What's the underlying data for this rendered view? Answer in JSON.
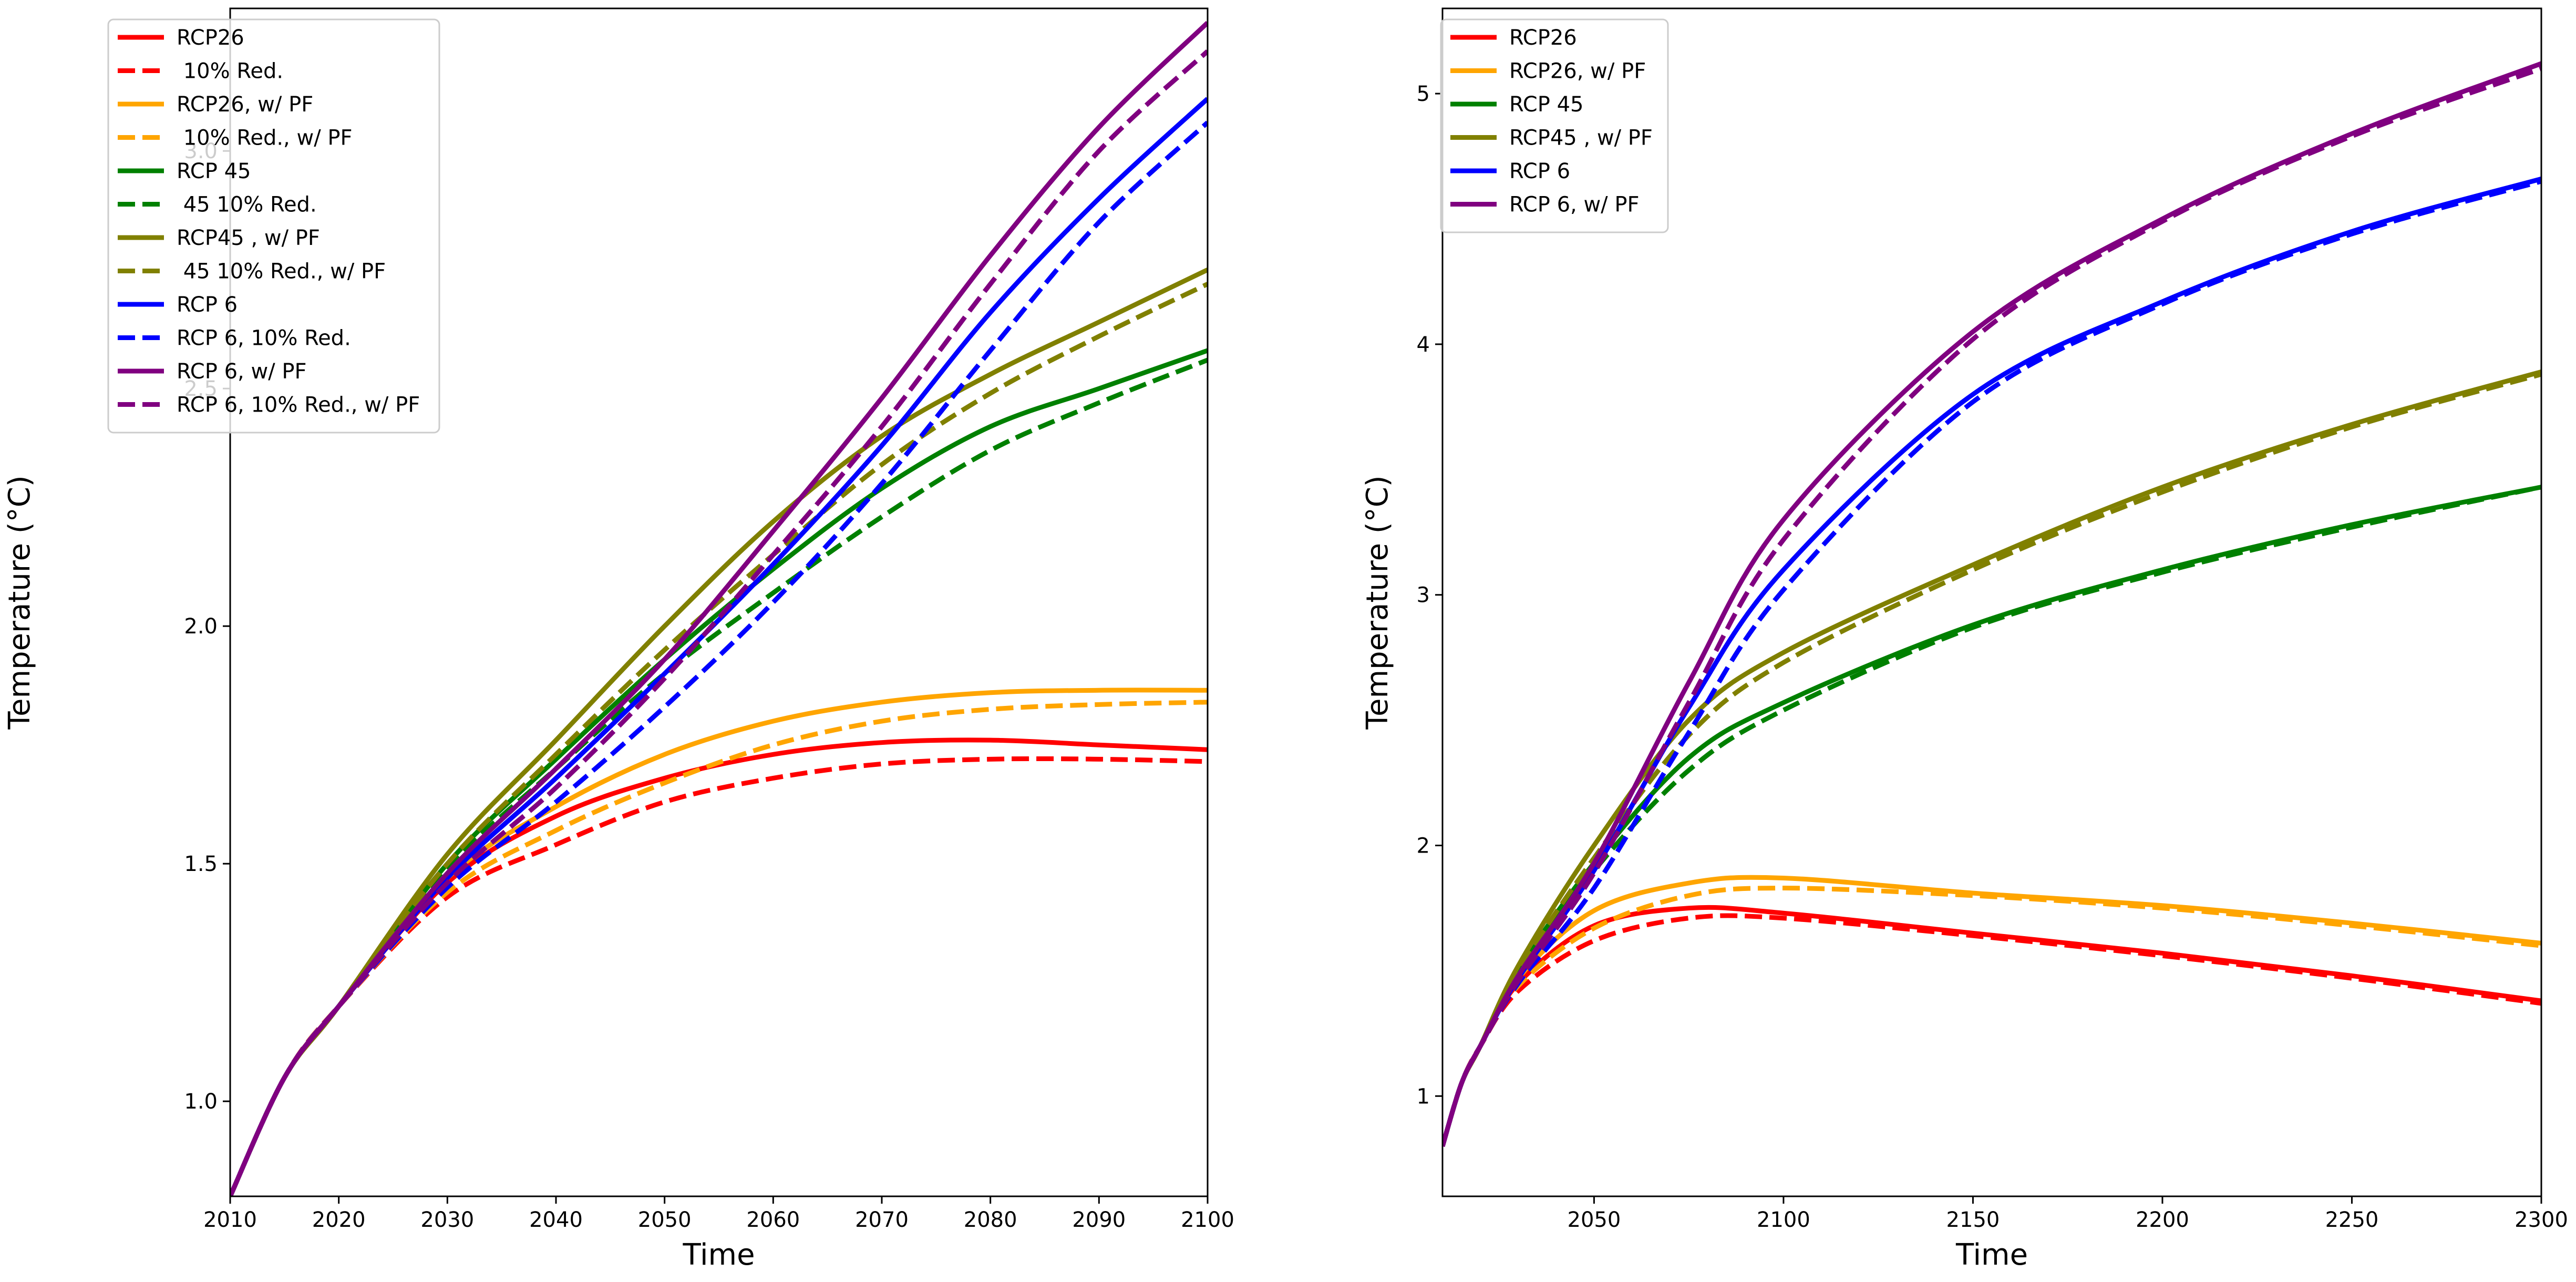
{
  "chart_data": [
    {
      "type": "line",
      "xlabel": "Time",
      "ylabel": "Temperature (°C)",
      "xlim": [
        2010,
        2100
      ],
      "ylim": [
        0.8,
        3.3
      ],
      "xticks": [
        2010,
        2020,
        2030,
        2040,
        2050,
        2060,
        2070,
        2080,
        2090,
        2100
      ],
      "yticks": [
        "1.0",
        "1.5",
        "2.0",
        "2.5",
        "3.0"
      ],
      "grid": false,
      "legend_position": "top-left",
      "x": [
        2010,
        2015,
        2020,
        2030,
        2040,
        2050,
        2060,
        2070,
        2080,
        2090,
        2100
      ],
      "series": [
        {
          "name": "RCP26",
          "color": "#ff0000",
          "style": "solid",
          "values": [
            0.8,
            1.05,
            1.2,
            1.46,
            1.6,
            1.68,
            1.73,
            1.755,
            1.76,
            1.75,
            1.74
          ]
        },
        {
          "name": " 10% Red.",
          "color": "#ff0000",
          "style": "dashed",
          "values": [
            0.8,
            1.05,
            1.2,
            1.43,
            1.54,
            1.63,
            1.68,
            1.71,
            1.72,
            1.72,
            1.715
          ]
        },
        {
          "name": "RCP26, w/ PF",
          "color": "#ffa500",
          "style": "solid",
          "values": [
            0.8,
            1.05,
            1.2,
            1.47,
            1.62,
            1.73,
            1.8,
            1.84,
            1.86,
            1.865,
            1.865
          ]
        },
        {
          "name": " 10% Red., w/ PF",
          "color": "#ffa500",
          "style": "dashed",
          "values": [
            0.8,
            1.05,
            1.2,
            1.44,
            1.57,
            1.67,
            1.75,
            1.8,
            1.825,
            1.835,
            1.84
          ]
        },
        {
          "name": "RCP 45",
          "color": "#008000",
          "style": "solid",
          "values": [
            0.8,
            1.05,
            1.2,
            1.5,
            1.72,
            1.93,
            2.12,
            2.29,
            2.42,
            2.5,
            2.58
          ]
        },
        {
          "name": " 45 10% Red.",
          "color": "#008000",
          "style": "dashed",
          "values": [
            0.8,
            1.05,
            1.2,
            1.49,
            1.7,
            1.9,
            2.07,
            2.23,
            2.37,
            2.47,
            2.56
          ]
        },
        {
          "name": "RCP45 , w/ PF",
          "color": "#808000",
          "style": "solid",
          "values": [
            0.8,
            1.05,
            1.2,
            1.52,
            1.76,
            2.0,
            2.22,
            2.4,
            2.53,
            2.64,
            2.75
          ]
        },
        {
          "name": " 45 10% Red., w/ PF",
          "color": "#808000",
          "style": "dashed",
          "values": [
            0.8,
            1.05,
            1.2,
            1.5,
            1.73,
            1.95,
            2.15,
            2.34,
            2.49,
            2.61,
            2.72
          ]
        },
        {
          "name": "RCP 6",
          "color": "#0000ff",
          "style": "solid",
          "values": [
            0.8,
            1.05,
            1.2,
            1.47,
            1.68,
            1.9,
            2.13,
            2.38,
            2.66,
            2.9,
            3.11
          ]
        },
        {
          "name": "RCP 6, 10% Red.",
          "color": "#0000ff",
          "style": "dashed",
          "values": [
            0.8,
            1.05,
            1.2,
            1.45,
            1.63,
            1.83,
            2.05,
            2.3,
            2.58,
            2.85,
            3.06
          ]
        },
        {
          "name": "RCP 6, w/ PF",
          "color": "#800080",
          "style": "solid",
          "values": [
            0.8,
            1.05,
            1.2,
            1.48,
            1.7,
            1.93,
            2.2,
            2.48,
            2.78,
            3.05,
            3.27
          ]
        },
        {
          "name": "RCP 6, 10% Red., w/ PF",
          "color": "#800080",
          "style": "dashed",
          "values": [
            0.8,
            1.05,
            1.2,
            1.46,
            1.66,
            1.89,
            2.15,
            2.42,
            2.72,
            3.0,
            3.21
          ]
        }
      ]
    },
    {
      "type": "line",
      "xlabel": "Time",
      "ylabel": "Temperature (°C)",
      "xlim": [
        2010,
        2300
      ],
      "ylim": [
        0.6,
        5.34
      ],
      "xticks": [
        2050,
        2100,
        2150,
        2200,
        2250,
        2300
      ],
      "yticks": [
        "1",
        "2",
        "3",
        "4",
        "5"
      ],
      "grid": false,
      "legend_position": "top-left",
      "x": [
        2010,
        2015,
        2020,
        2030,
        2050,
        2075,
        2100,
        2150,
        2200,
        2250,
        2300
      ],
      "series": [
        {
          "name": "RCP26",
          "color": "#ff0000",
          "style": "solid",
          "values": [
            0.8,
            1.05,
            1.2,
            1.45,
            1.68,
            1.75,
            1.73,
            1.65,
            1.57,
            1.48,
            1.38
          ]
        },
        {
          "color": "#ff0000",
          "style": "dashed",
          "values": [
            0.8,
            1.05,
            1.2,
            1.42,
            1.62,
            1.71,
            1.71,
            1.64,
            1.56,
            1.47,
            1.37
          ]
        },
        {
          "name": "RCP26, w/ PF",
          "color": "#ffa500",
          "style": "solid",
          "values": [
            0.8,
            1.05,
            1.2,
            1.47,
            1.74,
            1.85,
            1.87,
            1.81,
            1.76,
            1.69,
            1.61
          ]
        },
        {
          "color": "#ffa500",
          "style": "dashed",
          "values": [
            0.8,
            1.05,
            1.2,
            1.44,
            1.67,
            1.8,
            1.83,
            1.8,
            1.75,
            1.68,
            1.6
          ]
        },
        {
          "name": "RCP 45",
          "color": "#008000",
          "style": "solid",
          "values": [
            0.8,
            1.05,
            1.2,
            1.5,
            1.93,
            2.35,
            2.57,
            2.88,
            3.1,
            3.28,
            3.43
          ]
        },
        {
          "color": "#008000",
          "style": "dashed",
          "values": [
            0.8,
            1.05,
            1.2,
            1.49,
            1.9,
            2.3,
            2.54,
            2.87,
            3.09,
            3.27,
            3.43
          ]
        },
        {
          "name": "RCP45 , w/ PF",
          "color": "#808000",
          "style": "solid",
          "values": [
            0.8,
            1.05,
            1.2,
            1.52,
            2.0,
            2.5,
            2.77,
            3.12,
            3.43,
            3.68,
            3.89
          ]
        },
        {
          "color": "#808000",
          "style": "dashed",
          "values": [
            0.8,
            1.05,
            1.2,
            1.5,
            1.95,
            2.44,
            2.73,
            3.1,
            3.41,
            3.67,
            3.88
          ]
        },
        {
          "name": "RCP 6",
          "color": "#0000ff",
          "style": "solid",
          "values": [
            0.8,
            1.05,
            1.2,
            1.47,
            1.9,
            2.55,
            3.1,
            3.8,
            4.17,
            4.45,
            4.66
          ]
        },
        {
          "color": "#0000ff",
          "style": "dashed",
          "values": [
            0.8,
            1.05,
            1.2,
            1.45,
            1.83,
            2.45,
            3.02,
            3.77,
            4.16,
            4.44,
            4.65
          ]
        },
        {
          "name": "RCP 6, w/ PF",
          "color": "#800080",
          "style": "solid",
          "values": [
            0.8,
            1.05,
            1.2,
            1.48,
            1.93,
            2.65,
            3.3,
            4.05,
            4.5,
            4.84,
            5.12
          ]
        },
        {
          "color": "#800080",
          "style": "dashed",
          "values": [
            0.8,
            1.05,
            1.2,
            1.46,
            1.89,
            2.57,
            3.22,
            4.02,
            4.49,
            4.83,
            5.1
          ]
        }
      ]
    }
  ]
}
